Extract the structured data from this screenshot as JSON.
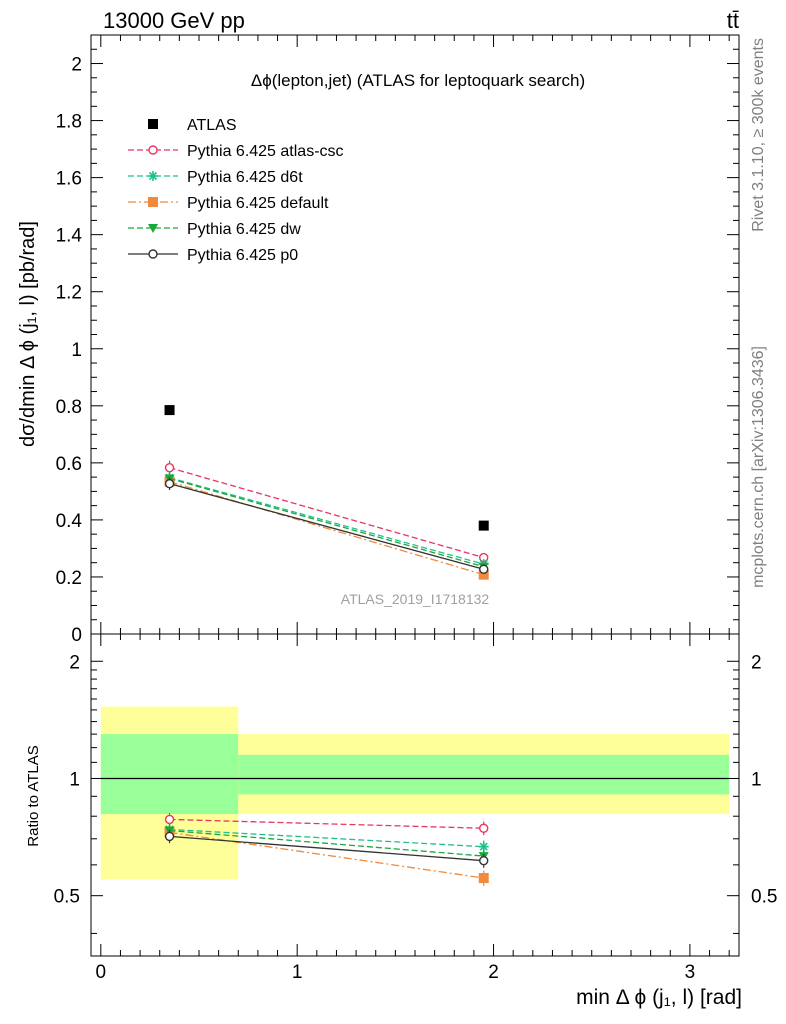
{
  "header": {
    "energy_label": "13000 GeV pp",
    "process_label": "tt̄"
  },
  "side_text": {
    "rivet": "Rivet 3.1.10, ≥ 300k events",
    "mcplots": "mcplots.cern.ch [arXiv:1306.3436]"
  },
  "chart_data": [
    {
      "type": "scatter",
      "panel": "main",
      "title": "Δϕ(lepton,jet) (ATLAS for leptoquark search)",
      "watermark": "ATLAS_2019_I1718132",
      "ylabel": "dσ/dmin Δ ϕ (j₁, l) [pb/rad]",
      "ylim": [
        0,
        2.1
      ],
      "xlim": [
        -0.05,
        3.25
      ],
      "y_ticks": [
        0,
        0.2,
        0.4,
        0.6,
        0.8,
        1,
        1.2,
        1.4,
        1.6,
        1.8,
        2
      ],
      "y_tick_labels": [
        "0",
        "0.2",
        "0.4",
        "0.6",
        "0.8",
        "1",
        "1.2",
        "1.4",
        "1.6",
        "1.8",
        "2"
      ],
      "legend_position": "top-left",
      "x": [
        0.35,
        1.95
      ],
      "series": [
        {
          "name": "ATLAS",
          "values": [
            0.785,
            0.38
          ],
          "errors": [
            0.008,
            0.006
          ],
          "color": "#000000",
          "marker": "filled-square",
          "line": "none"
        },
        {
          "name": "Pythia 6.425 atlas-csc",
          "values": [
            0.583,
            0.268
          ],
          "errors": [
            0.025,
            0.012
          ],
          "color": "#e8365f",
          "marker": "open-circle",
          "line": "dashed"
        },
        {
          "name": "Pythia 6.425 d6t",
          "values": [
            0.548,
            0.245
          ],
          "errors": [
            0.022,
            0.011
          ],
          "color": "#20c08a",
          "marker": "star",
          "line": "dashed"
        },
        {
          "name": "Pythia 6.425 default",
          "values": [
            0.534,
            0.208
          ],
          "errors": [
            0.022,
            0.01
          ],
          "color": "#f08a3c",
          "marker": "filled-square",
          "line": "dashdot"
        },
        {
          "name": "Pythia 6.425 dw",
          "values": [
            0.545,
            0.236
          ],
          "errors": [
            0.022,
            0.011
          ],
          "color": "#1aa83c",
          "marker": "filled-triangle-down",
          "line": "dashed"
        },
        {
          "name": "Pythia 6.425 p0",
          "values": [
            0.527,
            0.227
          ],
          "errors": [
            0.022,
            0.011
          ],
          "color": "#333333",
          "marker": "open-circle",
          "line": "solid"
        }
      ]
    },
    {
      "type": "scatter",
      "panel": "ratio",
      "ylabel": "Ratio to ATLAS",
      "xlabel": "min Δ ϕ (j₁, l) [rad]",
      "ylim": [
        0.35,
        2.35
      ],
      "xlim": [
        -0.05,
        3.25
      ],
      "y_ticks": [
        0.5,
        1,
        2
      ],
      "y_tick_labels": [
        "0.5",
        "1",
        "2"
      ],
      "x_ticks": [
        0,
        1,
        2,
        3
      ],
      "x_tick_labels": [
        "0",
        "1",
        "2",
        "3"
      ],
      "bands": [
        {
          "x_range": [
            0,
            0.7
          ],
          "inner": [
            0.81,
            1.3
          ],
          "outer": [
            0.55,
            1.53
          ]
        },
        {
          "x_range": [
            0.7,
            3.2
          ],
          "inner": [
            0.91,
            1.15
          ],
          "outer": [
            0.81,
            1.3
          ]
        }
      ],
      "band_colors": {
        "inner": "#99ff99",
        "outer": "#ffff99"
      },
      "x": [
        0.35,
        1.95
      ],
      "series": [
        {
          "name": "Pythia 6.425 atlas-csc",
          "values": [
            0.785,
            0.745
          ],
          "errors": [
            0.03,
            0.03
          ],
          "color": "#e8365f",
          "marker": "open-circle",
          "line": "dashed"
        },
        {
          "name": "Pythia 6.425 d6t",
          "values": [
            0.74,
            0.668
          ],
          "errors": [
            0.028,
            0.025
          ],
          "color": "#20c08a",
          "marker": "star",
          "line": "dashed"
        },
        {
          "name": "Pythia 6.425 default",
          "values": [
            0.727,
            0.555
          ],
          "errors": [
            0.028,
            0.025
          ],
          "color": "#f08a3c",
          "marker": "filled-square",
          "line": "dashdot"
        },
        {
          "name": "Pythia 6.425 dw",
          "values": [
            0.735,
            0.632
          ],
          "errors": [
            0.028,
            0.025
          ],
          "color": "#1aa83c",
          "marker": "filled-triangle-down",
          "line": "dashed"
        },
        {
          "name": "Pythia 6.425 p0",
          "values": [
            0.71,
            0.615
          ],
          "errors": [
            0.028,
            0.025
          ],
          "color": "#333333",
          "marker": "open-circle",
          "line": "solid"
        }
      ]
    }
  ]
}
